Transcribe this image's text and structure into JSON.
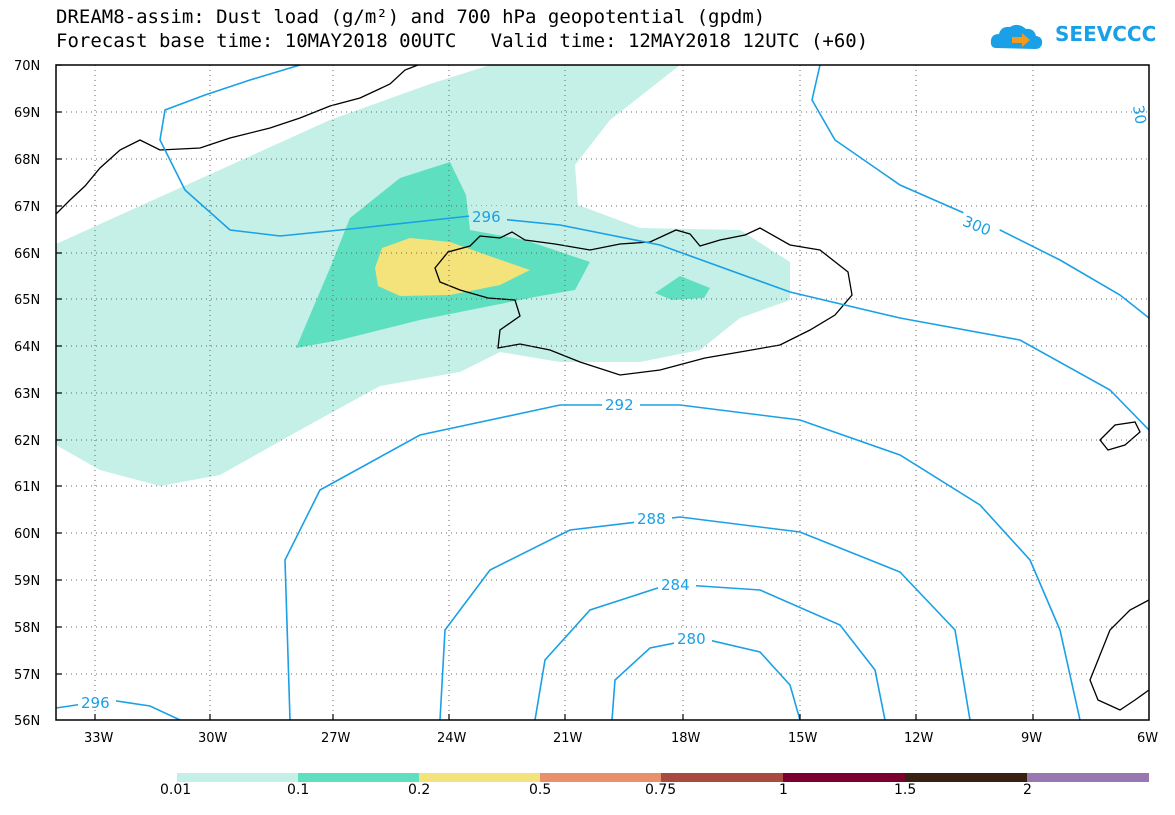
{
  "title": {
    "line1": "DREAM8-assim: Dust load (g/m²) and 700 hPa geopotential (gpdm)",
    "line2": "Forecast base time: 10MAY2018 00UTC   Valid time: 12MAY2018 12UTC (+60)"
  },
  "logo": {
    "text": "SEEVCCC",
    "icon": "cloud-arrow-icon"
  },
  "axes": {
    "lat_labels": [
      "70N",
      "69N",
      "68N",
      "67N",
      "66N",
      "65N",
      "64N",
      "63N",
      "62N",
      "61N",
      "60N",
      "59N",
      "58N",
      "57N",
      "56N"
    ],
    "lon_labels": [
      "33W",
      "30W",
      "27W",
      "24W",
      "21W",
      "18W",
      "15W",
      "12W",
      "9W",
      "6W"
    ]
  },
  "contours": {
    "labels": [
      "296",
      "300",
      "292",
      "288",
      "284",
      "280",
      "296",
      "30"
    ],
    "color": "#1aa0e6"
  },
  "dust_levels": {
    "colors": [
      "#c4f0e8",
      "#5ee0c0",
      "#f4e27a"
    ]
  },
  "colorbar": {
    "labels": [
      "0.01",
      "0.1",
      "0.2",
      "0.5",
      "0.75",
      "1",
      "1.5",
      "2"
    ],
    "colors": [
      "#c4f0e8",
      "#5ee0c0",
      "#f4e27a",
      "#e8906a",
      "#a84a40",
      "#7a0030",
      "#3a2010",
      "#9878b0"
    ]
  }
}
